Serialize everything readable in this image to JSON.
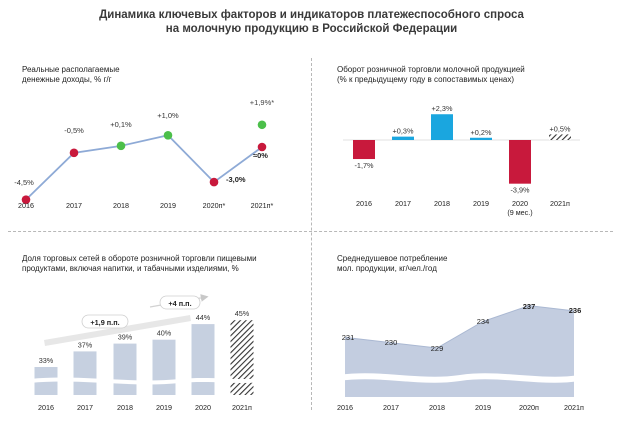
{
  "title_line1": "Динамика ключевых факторов и индикаторов платежеспособного спроса",
  "title_line2": "на молочную продукцию в Российской Федерации",
  "colors": {
    "line": "#8eaad6",
    "red_marker": "#c8193c",
    "green_marker": "#4cbf4a",
    "bar_blue": "#1aa6df",
    "bar_red": "#c8193c",
    "bar_gray": "#c6d0e0",
    "area": "#c3cde0"
  },
  "chart_data": [
    {
      "type": "line",
      "title_line1": "Реальные располагаемые",
      "title_line2": "денежные доходы, % г/г",
      "categories": [
        "2016",
        "2017",
        "2018",
        "2019",
        "2020п*",
        "2021п*"
      ],
      "values": [
        -4.5,
        -0.5,
        0.1,
        1.0,
        -3.0,
        0.0
      ],
      "labels": [
        "-4,5%",
        "-0,5%",
        "+0,1%",
        "+1,0%",
        "-3,0%",
        "≈0%"
      ],
      "marker_colors": [
        "red",
        "red",
        "green",
        "green",
        "red",
        "red"
      ],
      "extra_point": {
        "category": "2021п*",
        "value": 1.9,
        "label": "+1,9%*",
        "color": "green"
      }
    },
    {
      "type": "bar",
      "title_line1": "Оборот розничной торговли молочной продукцией",
      "title_line2": "(% к предыдущему году в сопоставимых ценах)",
      "categories": [
        "2016",
        "2017",
        "2018",
        "2019",
        "2020",
        "2021п"
      ],
      "category_sublabels": [
        "",
        "",
        "",
        "",
        "(9 мес.)",
        ""
      ],
      "values": [
        -1.7,
        0.3,
        2.3,
        0.2,
        -3.9,
        0.5
      ],
      "labels": [
        "-1,7%",
        "+0,3%",
        "+2,3%",
        "+0,2%",
        "-3,9%",
        "+0,5%"
      ],
      "bar_styles": [
        "red",
        "blue",
        "blue",
        "blue",
        "red",
        "hatched"
      ]
    },
    {
      "type": "bar",
      "title_line1": "Доля торговых сетей в обороте розничной торговли пищевыми",
      "title_line2": "продуктами, включая напитки, и табачными изделиями, %",
      "categories": [
        "2016",
        "2017",
        "2018",
        "2019",
        "2020",
        "2021п"
      ],
      "values": [
        33,
        37,
        39,
        40,
        44,
        45
      ],
      "labels": [
        "33%",
        "37%",
        "39%",
        "40%",
        "44%",
        "45%"
      ],
      "bar_styles": [
        "solid",
        "solid",
        "solid",
        "solid",
        "solid",
        "hatched"
      ],
      "axis_break": true,
      "annotations": [
        "+1,9 п.п.",
        "+4 п.п."
      ]
    },
    {
      "type": "area",
      "title_line1": "Среднедушевое потребление",
      "title_line2": "мол. продукции, кг/чел./год",
      "categories": [
        "2016",
        "2017",
        "2018",
        "2019",
        "2020п",
        "2021п"
      ],
      "values": [
        231,
        230,
        229,
        234,
        237,
        236
      ],
      "labels": [
        "231",
        "230",
        "229",
        "234",
        "237",
        "236"
      ],
      "bold_labels": [
        false,
        false,
        false,
        false,
        true,
        true
      ],
      "axis_break": true
    }
  ]
}
